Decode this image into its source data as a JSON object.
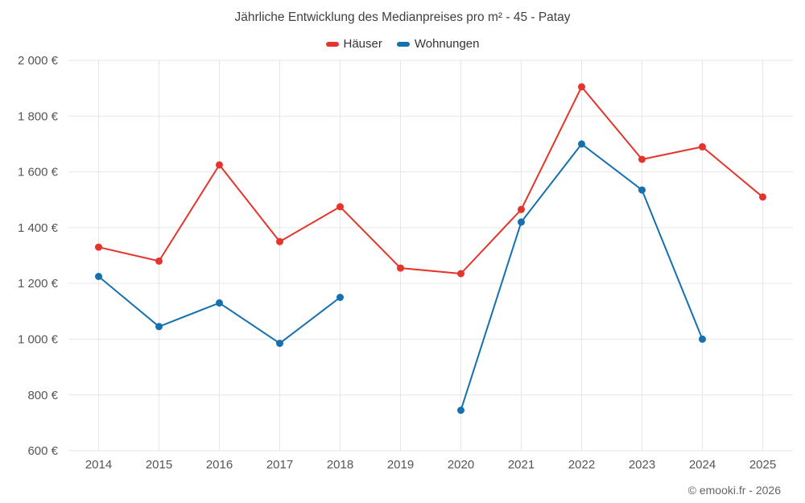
{
  "chart": {
    "title": "Jährliche Entwicklung des Medianpreises pro m² - 45 - Patay",
    "footer": "© emooki.fr - 2026"
  },
  "chart_data": {
    "type": "line",
    "categories": [
      "2014",
      "2015",
      "2016",
      "2017",
      "2018",
      "2019",
      "2020",
      "2021",
      "2022",
      "2023",
      "2024",
      "2025"
    ],
    "series": [
      {
        "name": "Häuser",
        "color": "#e5342c",
        "values": [
          1330,
          1280,
          1625,
          1350,
          1475,
          1255,
          1235,
          1465,
          1905,
          1645,
          1690,
          1510
        ]
      },
      {
        "name": "Wohnungen",
        "color": "#1470af",
        "values": [
          1225,
          1045,
          1130,
          985,
          1150,
          null,
          745,
          1420,
          1700,
          1535,
          1000,
          null
        ]
      }
    ],
    "title": "Jährliche Entwicklung des Medianpreises pro m² - 45 - Patay",
    "xlabel": "",
    "ylabel": "",
    "ylim": [
      600,
      2000
    ],
    "ytick_step": 200,
    "y_suffix": " €",
    "grid": true,
    "legend_position": "top",
    "grid_color": "#e6e6e6",
    "tick_label_color": "#555555"
  }
}
